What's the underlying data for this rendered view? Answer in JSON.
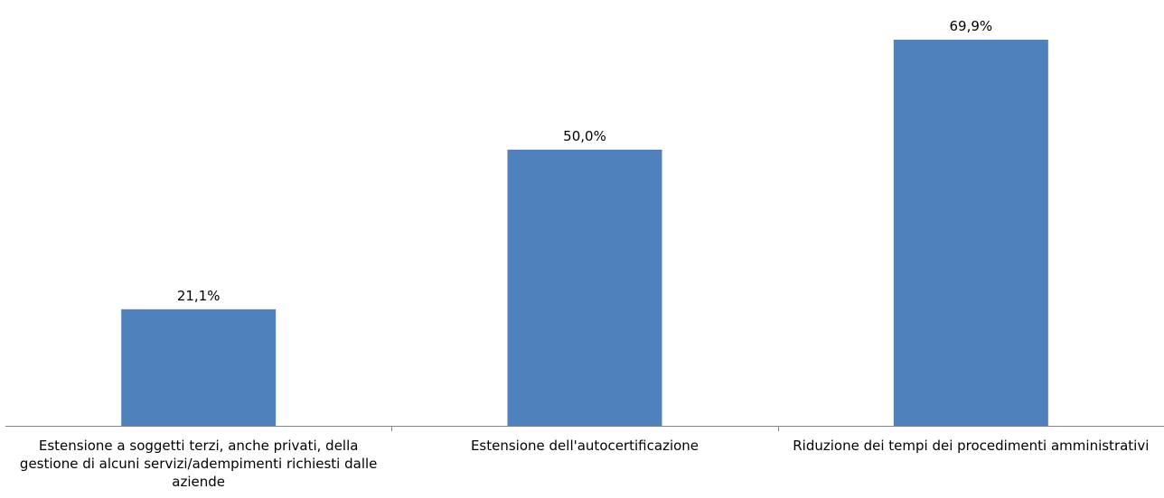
{
  "chart_data": {
    "type": "bar",
    "title": "",
    "xlabel": "",
    "ylabel": "",
    "ylim": [
      0,
      75
    ],
    "grid": false,
    "legend": "none",
    "bar_color": "#4F81BD",
    "categories": [
      "Estensione a soggetti terzi, anche privati, della gestione di alcuni servizi/adempimenti richiesti dalle aziende",
      "Estensione dell'autocertificazione",
      "Riduzione dei tempi dei procedimenti amministrativi"
    ],
    "values": [
      21.1,
      50.0,
      69.9
    ],
    "data_labels": [
      "21,1%",
      "50,0%",
      "69,9%"
    ]
  }
}
